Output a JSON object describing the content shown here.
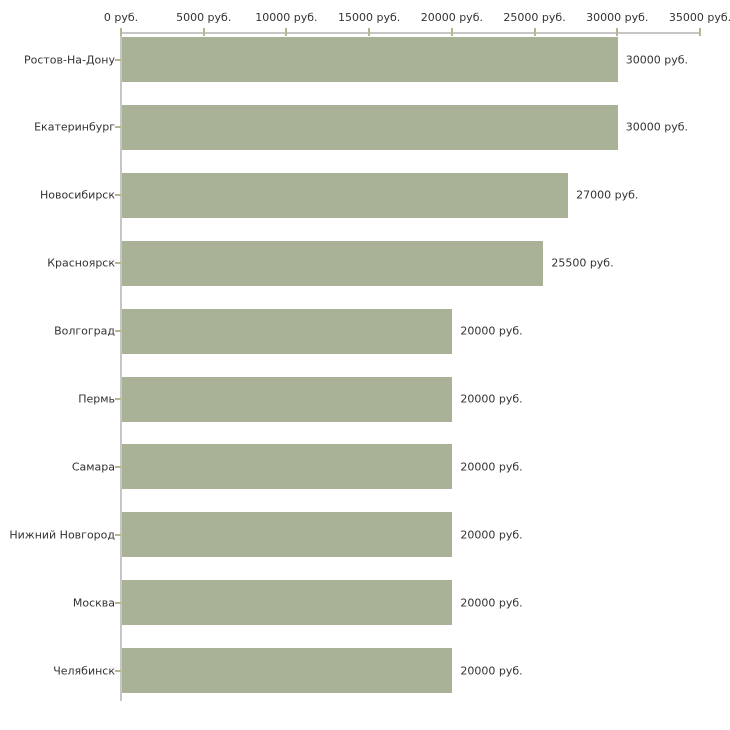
{
  "chart_data": {
    "type": "bar",
    "orientation": "horizontal",
    "title": "",
    "xlabel": "",
    "ylabel": "",
    "grid": false,
    "legend": false,
    "categories": [
      "Ростов-На-Дону",
      "Екатеринбург",
      "Новосибирск",
      "Красноярск",
      "Волгоград",
      "Пермь",
      "Самара",
      "Нижний Новгород",
      "Москва",
      "Челябинск"
    ],
    "values": [
      30000,
      30000,
      27000,
      25500,
      20000,
      20000,
      20000,
      20000,
      20000,
      20000
    ],
    "value_labels": [
      "30000 руб.",
      "30000 руб.",
      "27000 руб.",
      "25500 руб.",
      "20000 руб.",
      "20000 руб.",
      "20000 руб.",
      "20000 руб.",
      "20000 руб.",
      "20000 руб."
    ],
    "x_axis": {
      "position": "top",
      "range": [
        0,
        35000
      ],
      "tick_values": [
        0,
        5000,
        10000,
        15000,
        20000,
        25000,
        30000,
        35000
      ],
      "tick_labels": [
        "0 руб.",
        "5000 руб.",
        "10000 руб.",
        "15000 руб.",
        "20000 руб.",
        "25000 руб.",
        "30000 руб.",
        "35000 руб."
      ]
    },
    "colors": {
      "bar": "#a9b197",
      "axis_line": "#c6c6c6",
      "tick": "#b4b88c",
      "text": "#333333",
      "background": "#ffffff"
    }
  }
}
